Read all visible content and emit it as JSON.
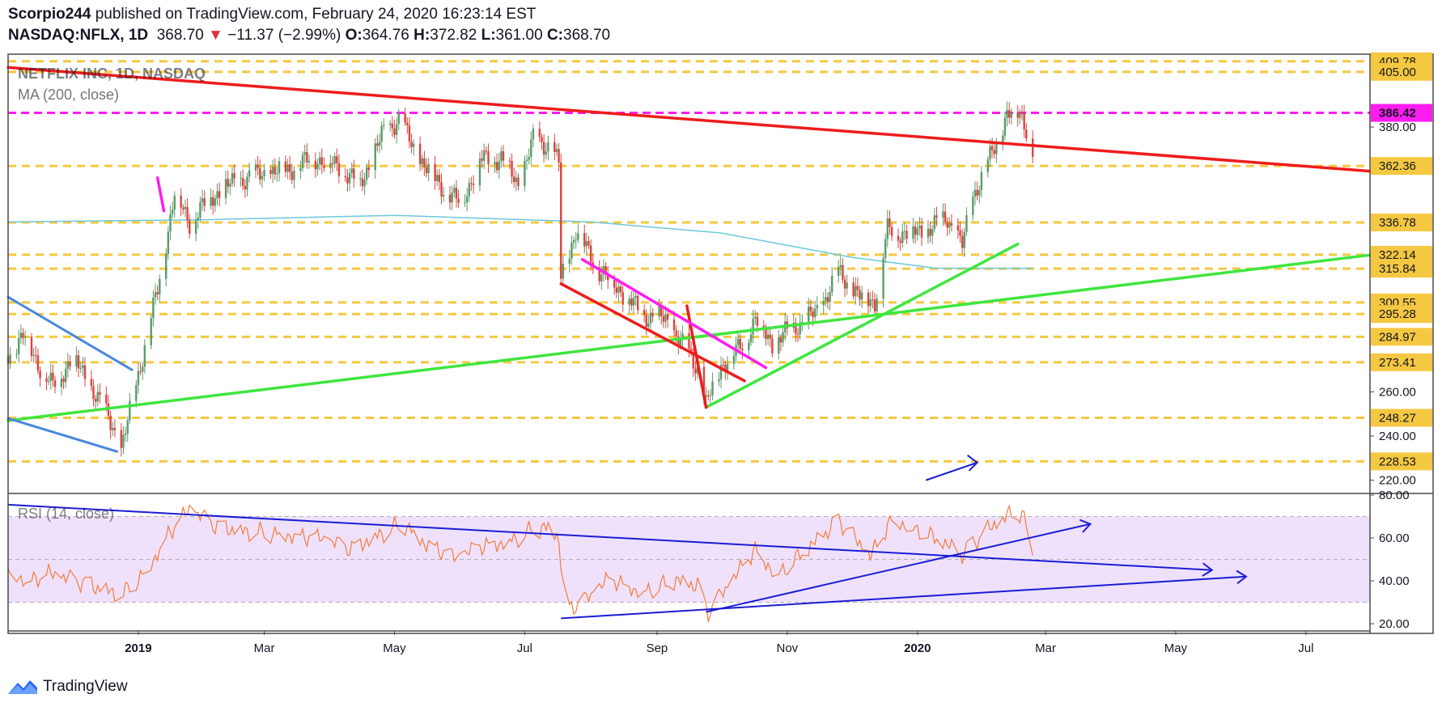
{
  "header": {
    "author": "Scorpio244",
    "published_text": "published on TradingView.com, February 24, 2020 16:23:14 EST",
    "symbol": "NASDAQ:NFLX, 1D",
    "last": "368.70",
    "change": "−11.37 (−2.99%)",
    "open_label": "O:",
    "open": "364.76",
    "high_label": "H:",
    "high": "372.82",
    "low_label": "L:",
    "low": "361.00",
    "close_label": "C:",
    "close": "368.70"
  },
  "legend": {
    "title": "NETFLIX INC, 1D, NASDAQ",
    "ma": "MA (200, close)",
    "rsi": "RSI (14, close)"
  },
  "brand": {
    "name": "TradingView",
    "icon": "tradingview-logo-icon"
  },
  "colors": {
    "support": "#f5c842",
    "resistance_red": "#ee1c1c",
    "trend_green": "#3ee63e",
    "magenta": "#ff1cf0",
    "blue_line": "#4a88dc",
    "rsi_line": "#f57c3c",
    "ma_line": "#6cc9d9",
    "rsi_band": "#efe1fb",
    "candle_up": "#5b9a6b",
    "candle_down": "#d9443e",
    "arrow_blue": "#1c1cd4",
    "price_tag": "#f5c842",
    "current_tag": "#ff1cf0"
  },
  "chart_data": [
    {
      "type": "candlestick",
      "x_axis": {
        "labels": [
          "2019",
          "Mar",
          "May",
          "Jul",
          "Sep",
          "Nov",
          "2020",
          "Mar",
          "May",
          "Jul"
        ],
        "range": [
          "2018-11-01",
          "2020-07-31"
        ]
      },
      "y_axis": {
        "labels": [
          "405.00",
          "380.00",
          "260.00",
          "240.00",
          "220.00"
        ],
        "range": [
          214,
          413
        ]
      },
      "support_levels": [
        409.78,
        405.0,
        362.36,
        336.78,
        322.14,
        315.84,
        300.55,
        295.28,
        284.97,
        273.41,
        248.27,
        228.53
      ],
      "highlight_level": 386.42,
      "price_labels": [
        "409.78",
        "405.00",
        "386.42",
        "380.00",
        "362.36",
        "336.78",
        "322.14",
        "315.84",
        "300.55",
        "295.28",
        "284.97",
        "273.41",
        "260.00",
        "248.27",
        "240.00",
        "228.53",
        "220.00"
      ],
      "candles_close": [
        [
          "2018-11-01",
          276
        ],
        [
          "2018-11-08",
          286
        ],
        [
          "2018-11-15",
          273
        ],
        [
          "2018-11-22",
          262
        ],
        [
          "2018-12-01",
          276
        ],
        [
          "2018-12-10",
          262
        ],
        [
          "2018-12-20",
          245
        ],
        [
          "2018-12-24",
          233
        ],
        [
          "2018-12-31",
          264
        ],
        [
          "2019-01-10",
          306
        ],
        [
          "2019-01-18",
          350
        ],
        [
          "2019-01-25",
          337
        ],
        [
          "2019-02-05",
          349
        ],
        [
          "2019-02-15",
          355
        ],
        [
          "2019-02-28",
          359
        ],
        [
          "2019-03-10",
          360
        ],
        [
          "2019-03-25",
          366
        ],
        [
          "2019-04-05",
          362
        ],
        [
          "2019-04-15",
          354
        ],
        [
          "2019-04-25",
          376
        ],
        [
          "2019-05-03",
          384
        ],
        [
          "2019-05-10",
          370
        ],
        [
          "2019-05-20",
          356
        ],
        [
          "2019-06-01",
          345
        ],
        [
          "2019-06-10",
          365
        ],
        [
          "2019-06-20",
          366
        ],
        [
          "2019-06-28",
          354
        ],
        [
          "2019-07-05",
          374
        ],
        [
          "2019-07-12",
          372
        ],
        [
          "2019-07-17",
          363
        ],
        [
          "2019-07-18",
          312
        ],
        [
          "2019-07-25",
          333
        ],
        [
          "2019-08-05",
          315
        ],
        [
          "2019-08-15",
          306
        ],
        [
          "2019-08-25",
          295
        ],
        [
          "2019-09-05",
          293
        ],
        [
          "2019-09-20",
          271
        ],
        [
          "2019-09-24",
          254
        ],
        [
          "2019-10-01",
          272
        ],
        [
          "2019-10-10",
          280
        ],
        [
          "2019-10-17",
          293
        ],
        [
          "2019-10-25",
          282
        ],
        [
          "2019-11-05",
          290
        ],
        [
          "2019-11-15",
          296
        ],
        [
          "2019-11-25",
          314
        ],
        [
          "2019-12-05",
          303
        ],
        [
          "2019-12-12",
          301
        ],
        [
          "2019-12-18",
          333
        ],
        [
          "2019-12-27",
          332
        ],
        [
          "2020-01-05",
          333
        ],
        [
          "2020-01-15",
          339
        ],
        [
          "2020-01-22",
          326
        ],
        [
          "2020-01-27",
          349
        ],
        [
          "2020-02-05",
          368
        ],
        [
          "2020-02-12",
          386
        ],
        [
          "2020-02-18",
          386
        ],
        [
          "2020-02-21",
          380
        ],
        [
          "2020-02-24",
          369
        ]
      ],
      "ma200": [
        [
          "2018-11-01",
          337
        ],
        [
          "2019-02-01",
          338
        ],
        [
          "2019-05-01",
          340
        ],
        [
          "2019-08-01",
          337
        ],
        [
          "2019-10-01",
          332
        ],
        [
          "2019-12-01",
          321
        ],
        [
          "2020-01-10",
          316
        ],
        [
          "2020-02-24",
          316
        ]
      ],
      "drawings": [
        {
          "name": "red-resistance-line",
          "color": "red",
          "from": [
            "2018-11-01",
            407
          ],
          "to": [
            "2020-07-31",
            360
          ]
        },
        {
          "name": "green-long-trendline",
          "color": "green",
          "from": [
            "2018-11-01",
            247
          ],
          "to": [
            "2020-07-31",
            322
          ]
        },
        {
          "name": "green-short-trendline",
          "color": "green",
          "from": [
            "2019-09-24",
            253
          ],
          "to": [
            "2020-02-17",
            327
          ]
        },
        {
          "name": "red-downtrend-line",
          "color": "red",
          "from": [
            "2019-07-18",
            309
          ],
          "to": [
            "2019-10-12",
            265
          ]
        },
        {
          "name": "red-steep-line",
          "color": "red",
          "from": [
            "2019-09-15",
            299
          ],
          "to": [
            "2019-09-24",
            253
          ]
        },
        {
          "name": "magenta-downtrend-line",
          "color": "magenta",
          "from": [
            "2019-07-28",
            320
          ],
          "to": [
            "2019-10-22",
            271
          ]
        },
        {
          "name": "magenta-marker",
          "color": "magenta",
          "from": [
            "2019-01-10",
            357
          ],
          "to": [
            "2019-01-13",
            342
          ]
        },
        {
          "name": "blue-line-upper",
          "color": "blue",
          "from": [
            "2018-11-01",
            303
          ],
          "to": [
            "2018-12-29",
            270
          ]
        },
        {
          "name": "blue-line-lower",
          "color": "blue",
          "from": [
            "2018-11-01",
            248
          ],
          "to": [
            "2018-12-22",
            233
          ]
        }
      ],
      "annotation_arrow": {
        "from": [
          "2020-01-05",
          220
        ],
        "to": [
          "2020-01-29",
          228
        ]
      }
    },
    {
      "type": "line",
      "name": "RSI (14, close)",
      "y_axis": {
        "labels": [
          "80.00",
          "60.00",
          "40.00",
          "20.00"
        ],
        "range": [
          17,
          80
        ]
      },
      "band": [
        30,
        70
      ],
      "values": [
        [
          "2018-11-01",
          45
        ],
        [
          "2018-11-10",
          40
        ],
        [
          "2018-11-20",
          43
        ],
        [
          "2018-12-01",
          40
        ],
        [
          "2018-12-10",
          38
        ],
        [
          "2018-12-24",
          33
        ],
        [
          "2019-01-05",
          45
        ],
        [
          "2019-01-15",
          62
        ],
        [
          "2019-01-25",
          73
        ],
        [
          "2019-02-05",
          66
        ],
        [
          "2019-02-20",
          63
        ],
        [
          "2019-03-10",
          62
        ],
        [
          "2019-03-25",
          60
        ],
        [
          "2019-04-10",
          55
        ],
        [
          "2019-04-25",
          62
        ],
        [
          "2019-05-05",
          67
        ],
        [
          "2019-05-15",
          58
        ],
        [
          "2019-05-30",
          50
        ],
        [
          "2019-06-10",
          56
        ],
        [
          "2019-06-25",
          59
        ],
        [
          "2019-07-05",
          64
        ],
        [
          "2019-07-12",
          65
        ],
        [
          "2019-07-17",
          60
        ],
        [
          "2019-07-20",
          26
        ],
        [
          "2019-07-30",
          31
        ],
        [
          "2019-08-10",
          41
        ],
        [
          "2019-08-25",
          35
        ],
        [
          "2019-09-10",
          40
        ],
        [
          "2019-09-20",
          38
        ],
        [
          "2019-09-25",
          25
        ],
        [
          "2019-10-05",
          38
        ],
        [
          "2019-10-17",
          55
        ],
        [
          "2019-10-27",
          43
        ],
        [
          "2019-11-10",
          54
        ],
        [
          "2019-11-25",
          68
        ],
        [
          "2019-12-10",
          51
        ],
        [
          "2019-12-20",
          69
        ],
        [
          "2020-01-05",
          62
        ],
        [
          "2020-01-22",
          52
        ],
        [
          "2020-02-01",
          62
        ],
        [
          "2020-02-15",
          72
        ],
        [
          "2020-02-20",
          70
        ],
        [
          "2020-02-24",
          55
        ]
      ],
      "drawings": [
        {
          "name": "rsi-downtrend-line",
          "from": [
            "2018-11-01",
            75.5
          ],
          "to": [
            "2020-05-18",
            45
          ]
        },
        {
          "name": "rsi-uptrend-line-long",
          "from": [
            "2019-07-18",
            22.5
          ],
          "to": [
            "2020-06-03",
            42
          ]
        },
        {
          "name": "rsi-uptrend-line-short",
          "from": [
            "2019-09-24",
            25.5
          ],
          "to": [
            "2020-03-22",
            66.5
          ]
        }
      ]
    }
  ]
}
